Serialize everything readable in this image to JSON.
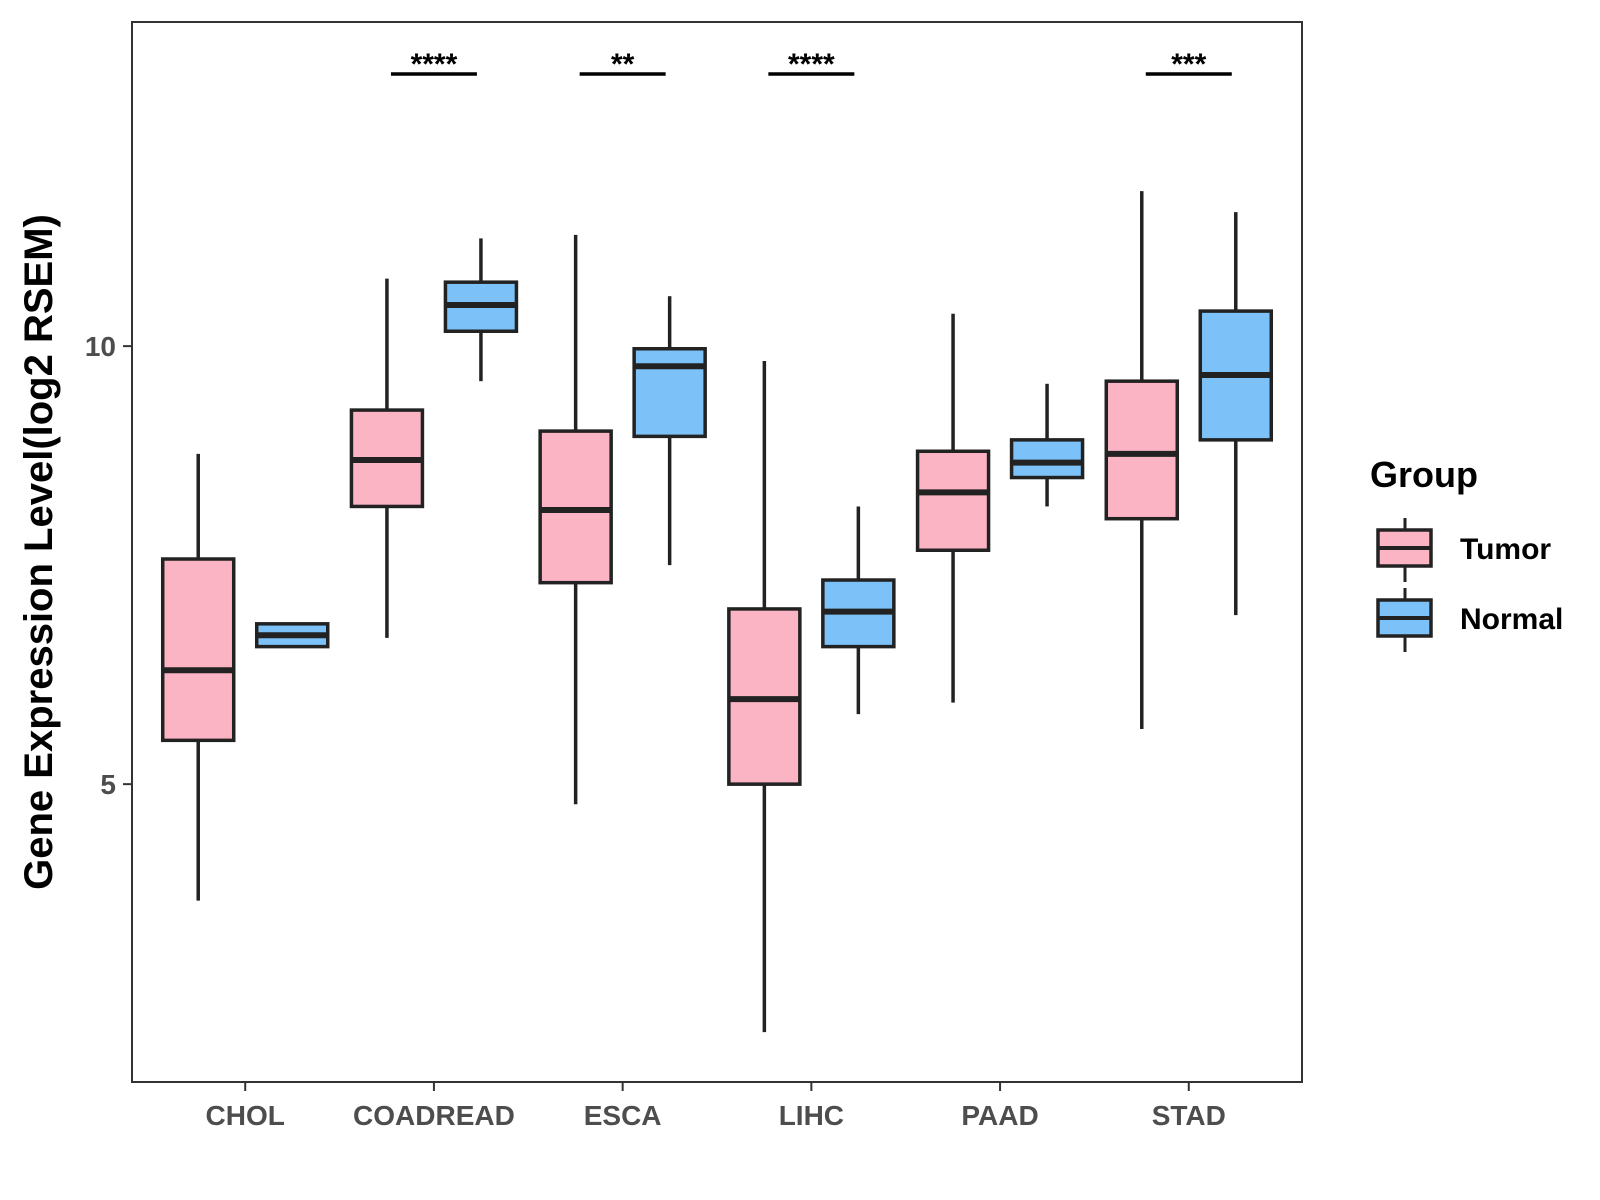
{
  "chart_data": {
    "type": "boxplot",
    "title": "",
    "xlabel": "",
    "ylabel": "Gene Expression Level(log2 RSEM)",
    "ylim": [
      1.6,
      13.7
    ],
    "yticks": [
      5,
      10
    ],
    "categories": [
      "CHOL",
      "COADREAD",
      "ESCA",
      "LIHC",
      "PAAD",
      "STAD"
    ],
    "legend": {
      "title": "Group",
      "position": "right",
      "entries": [
        {
          "label": "Tumor",
          "color": "#FBB4C4"
        },
        {
          "label": "Normal",
          "color": "#7CC2F8"
        }
      ]
    },
    "series": [
      {
        "name": "Tumor",
        "color": "#FBB4C4",
        "boxes": [
          {
            "min": 3.67,
            "q1": 5.5,
            "median": 6.3,
            "q3": 7.57,
            "max": 8.77
          },
          {
            "min": 6.67,
            "q1": 8.17,
            "median": 8.7,
            "q3": 9.27,
            "max": 10.77
          },
          {
            "min": 4.77,
            "q1": 7.3,
            "median": 8.13,
            "q3": 9.03,
            "max": 11.27
          },
          {
            "min": 2.17,
            "q1": 5.0,
            "median": 5.97,
            "q3": 7.0,
            "max": 9.83
          },
          {
            "min": 5.93,
            "q1": 7.67,
            "median": 8.33,
            "q3": 8.8,
            "max": 10.37
          },
          {
            "min": 5.63,
            "q1": 8.03,
            "median": 8.77,
            "q3": 9.6,
            "max": 11.77
          }
        ]
      },
      {
        "name": "Normal",
        "color": "#7CC2F8",
        "boxes": [
          {
            "min": 6.57,
            "q1": 6.57,
            "median": 6.7,
            "q3": 6.83,
            "max": 6.83
          },
          {
            "min": 9.6,
            "q1": 10.17,
            "median": 10.47,
            "q3": 10.73,
            "max": 11.23
          },
          {
            "min": 7.5,
            "q1": 8.97,
            "median": 9.77,
            "q3": 9.97,
            "max": 10.57
          },
          {
            "min": 5.8,
            "q1": 6.57,
            "median": 6.97,
            "q3": 7.33,
            "max": 8.17
          },
          {
            "min": 8.17,
            "q1": 8.5,
            "median": 8.67,
            "q3": 8.93,
            "max": 9.57
          },
          {
            "min": 6.93,
            "q1": 8.93,
            "median": 9.67,
            "q3": 10.4,
            "max": 11.53
          }
        ]
      }
    ],
    "significance": [
      {
        "category": "COADREAD",
        "label": "****"
      },
      {
        "category": "ESCA",
        "label": "**"
      },
      {
        "category": "LIHC",
        "label": "****"
      },
      {
        "category": "STAD",
        "label": "***"
      }
    ],
    "grid": false
  }
}
